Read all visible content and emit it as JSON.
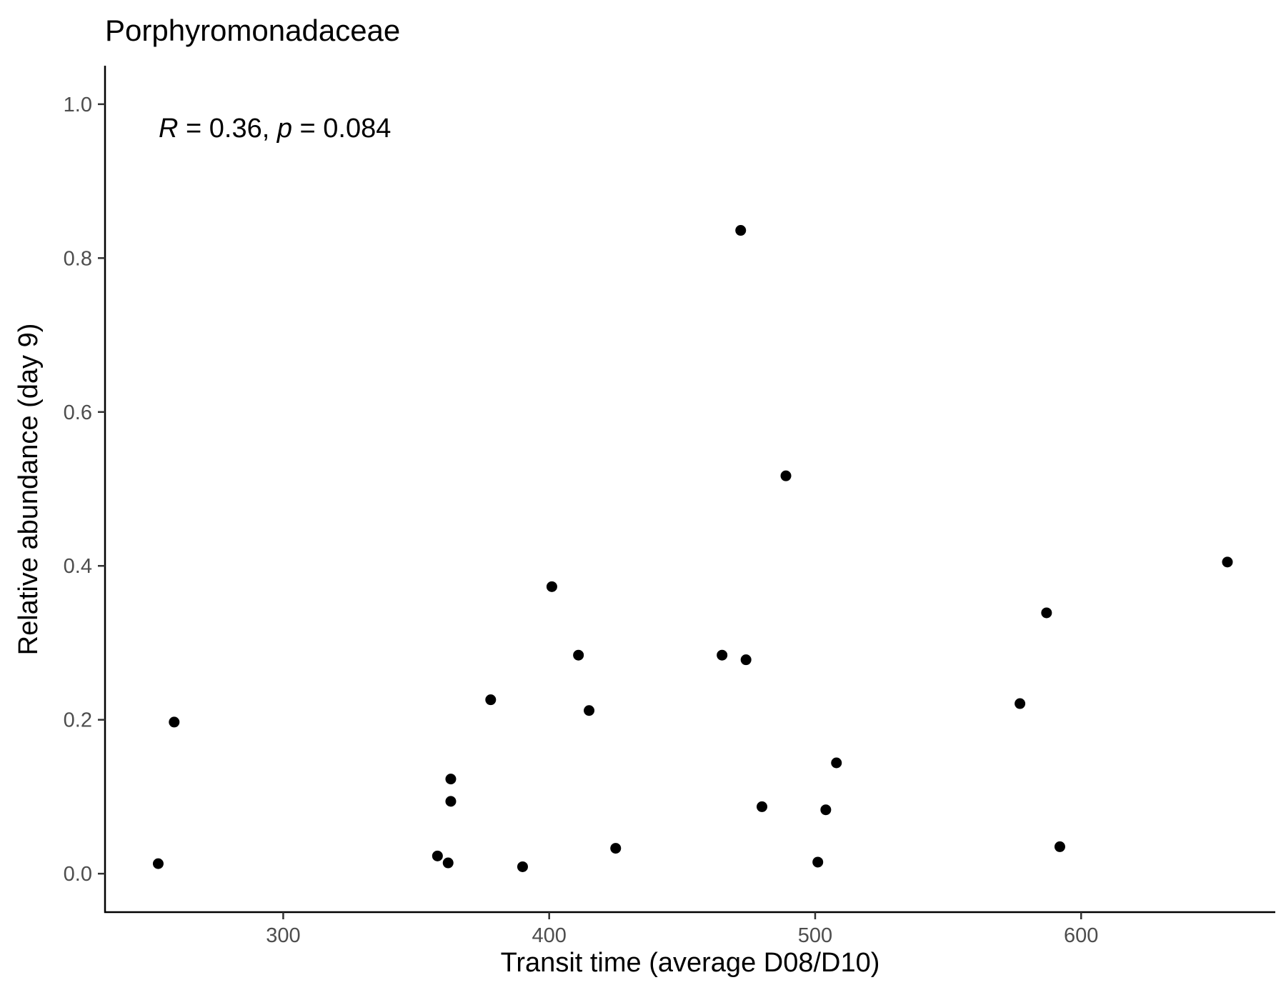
{
  "chart_data": {
    "type": "scatter",
    "title": "Porphyromonadaceae",
    "xlabel": "Transit time (average D08/D10)",
    "ylabel": "Relative abundance (day 9)",
    "xlim": [
      233,
      673
    ],
    "ylim": [
      -0.05,
      1.05
    ],
    "x_ticks": [
      300,
      400,
      500,
      600
    ],
    "y_ticks": [
      0.0,
      0.2,
      0.4,
      0.6,
      0.8,
      1.0
    ],
    "x_tick_labels": [
      "300",
      "400",
      "500",
      "600"
    ],
    "y_tick_labels": [
      "0.0",
      "0.2",
      "0.4",
      "0.6",
      "0.8",
      "1.0"
    ],
    "grid": false,
    "legend": "none",
    "annotation": {
      "r_symbol": "R",
      "r_text": " = 0.36, ",
      "p_symbol": "p",
      "p_text": " = 0.084"
    },
    "point_color": "#000000",
    "points": [
      {
        "x": 253,
        "y": 0.013
      },
      {
        "x": 259,
        "y": 0.197
      },
      {
        "x": 358,
        "y": 0.023
      },
      {
        "x": 362,
        "y": 0.014
      },
      {
        "x": 363,
        "y": 0.123
      },
      {
        "x": 363,
        "y": 0.094
      },
      {
        "x": 378,
        "y": 0.226
      },
      {
        "x": 390,
        "y": 0.009
      },
      {
        "x": 401,
        "y": 0.373
      },
      {
        "x": 411,
        "y": 0.284
      },
      {
        "x": 415,
        "y": 0.212
      },
      {
        "x": 425,
        "y": 0.033
      },
      {
        "x": 465,
        "y": 0.284
      },
      {
        "x": 472,
        "y": 0.836
      },
      {
        "x": 474,
        "y": 0.278
      },
      {
        "x": 480,
        "y": 0.087
      },
      {
        "x": 489,
        "y": 0.517
      },
      {
        "x": 501,
        "y": 0.015
      },
      {
        "x": 504,
        "y": 0.083
      },
      {
        "x": 508,
        "y": 0.144
      },
      {
        "x": 577,
        "y": 0.221
      },
      {
        "x": 587,
        "y": 0.339
      },
      {
        "x": 592,
        "y": 0.035
      },
      {
        "x": 655,
        "y": 0.405
      }
    ]
  }
}
